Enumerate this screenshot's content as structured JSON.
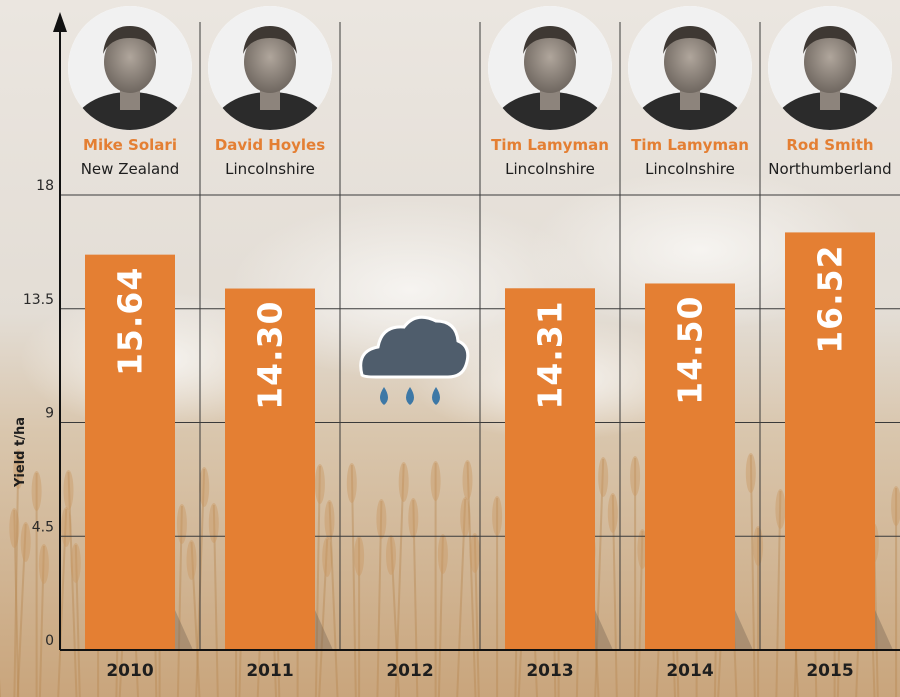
{
  "colors": {
    "bar": "#e47f33",
    "name_text": "#e47f33",
    "grid": "#3a3a3a",
    "axis": "#111111",
    "cloud": "#4f5d6c",
    "raindrop": "#3d78a6"
  },
  "chart_data": {
    "type": "bar",
    "title": "",
    "ylabel": "Yield t/ha",
    "xlabel": "",
    "ylim": [
      0,
      18
    ],
    "yticks": [
      0,
      4.5,
      9,
      13.5,
      18
    ],
    "ytick_labels": [
      "0",
      "4.5",
      "9",
      "13.5",
      "18"
    ],
    "categories": [
      "2010",
      "2011",
      "2012",
      "2013",
      "2014",
      "2015"
    ],
    "values": [
      15.64,
      14.3,
      null,
      14.31,
      14.5,
      16.52
    ],
    "value_labels": [
      "15.64",
      "14.30",
      "",
      "14.31",
      "14.50",
      "16.52"
    ],
    "grid": true,
    "annotations": [
      {
        "category": "2012",
        "icon": "rain-cloud-icon"
      }
    ]
  },
  "people": [
    {
      "year": "2010",
      "name": "Mike Solari",
      "place": "New Zealand",
      "photo": "portrait-photo"
    },
    {
      "year": "2011",
      "name": "David Hoyles",
      "place": "Lincolnshire",
      "photo": "portrait-photo"
    },
    {
      "year": "2012",
      "name": "",
      "place": "",
      "photo": ""
    },
    {
      "year": "2013",
      "name": "Tim Lamyman",
      "place": "Lincolnshire",
      "photo": "portrait-photo"
    },
    {
      "year": "2014",
      "name": "Tim Lamyman",
      "place": "Lincolnshire",
      "photo": "portrait-photo"
    },
    {
      "year": "2015",
      "name": "Rod Smith",
      "place": "Northumberland",
      "photo": "portrait-photo"
    }
  ]
}
